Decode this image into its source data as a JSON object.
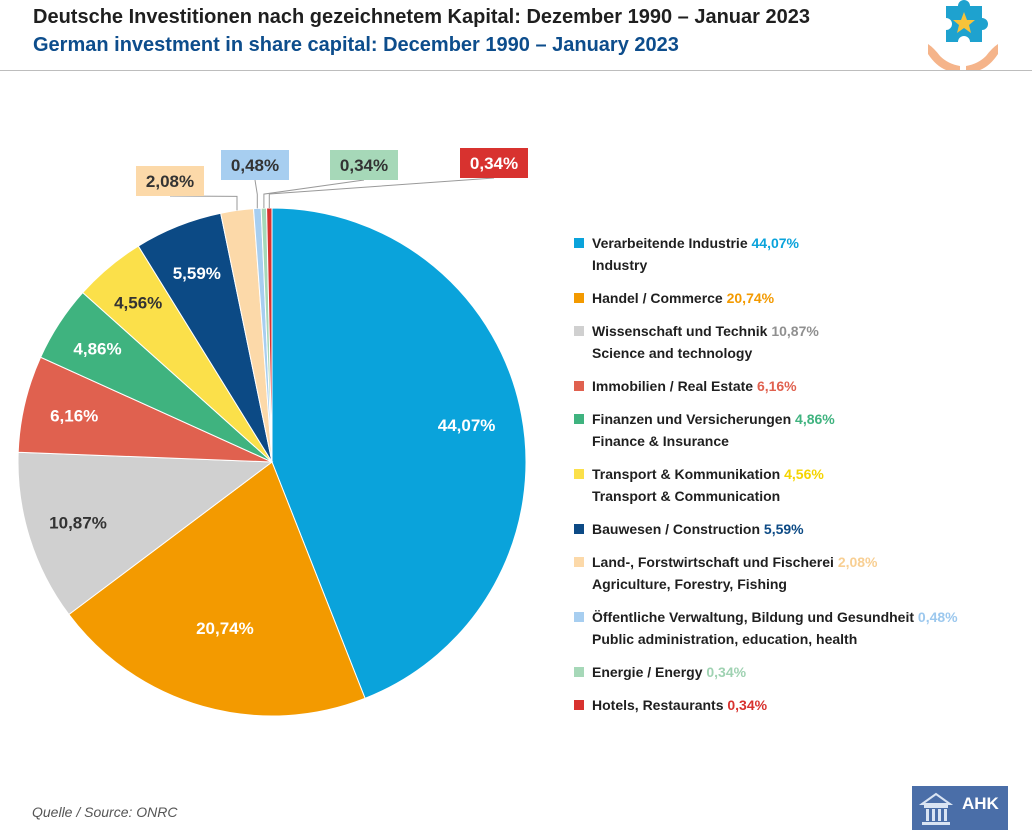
{
  "header": {
    "title_de": "Deutsche Investitionen nach gezeichnetem Kapital: Dezember 1990 – Januar 2023",
    "title_en": "German investment in share capital: December 1990 – January 2023"
  },
  "footer": {
    "source": "Quelle / Source: ONRC",
    "logo_text": "AHK"
  },
  "icons": {
    "top_right": "puzzle-hands-star-icon",
    "bottom_right": "ahk-building-logo-icon"
  },
  "chart_data": {
    "type": "pie",
    "start_angle_deg": 0,
    "direction": "clockwise",
    "slices": [
      {
        "label_de": "Verarbeitende Industrie",
        "label_en": "Industry",
        "value": 44.07,
        "value_label": "44,07%",
        "color": "#0aa3db",
        "label_color": "#ffffff",
        "pct_color": "#0aa3db"
      },
      {
        "label_de": "Handel / Commerce",
        "label_en": "",
        "value": 20.74,
        "value_label": "20,74%",
        "color": "#f39a00",
        "label_color": "#ffffff",
        "pct_color": "#f39a00"
      },
      {
        "label_de": "Wissenschaft und Technik",
        "label_en": "Science and technology",
        "value": 10.87,
        "value_label": "10,87%",
        "color": "#d0d0d0",
        "label_color": "#333333",
        "pct_color": "#909090"
      },
      {
        "label_de": "Immobilien / Real Estate",
        "label_en": "",
        "value": 6.16,
        "value_label": "6,16%",
        "color": "#e0614f",
        "label_color": "#ffffff",
        "pct_color": "#e0614f"
      },
      {
        "label_de": "Finanzen und Versicherungen",
        "label_en": "Finance & Insurance",
        "value": 4.86,
        "value_label": "4,86%",
        "color": "#3fb37f",
        "label_color": "#ffffff",
        "pct_color": "#3fb37f"
      },
      {
        "label_de": "Transport & Kommunikation",
        "label_en": "Transport & Communication",
        "value": 4.56,
        "value_label": "4,56%",
        "color": "#fbe04a",
        "label_color": "#333333",
        "pct_color": "#f5d400"
      },
      {
        "label_de": "Bauwesen / Construction",
        "label_en": "",
        "value": 5.59,
        "value_label": "5,59%",
        "color": "#0c4a85",
        "label_color": "#ffffff",
        "pct_color": "#0c4a85"
      },
      {
        "label_de": "Land-, Forstwirtschaft und Fischerei",
        "label_en": "Agriculture, Forestry, Fishing",
        "value": 2.08,
        "value_label": "2,08%",
        "color": "#fcd9a9",
        "label_color": "#333333",
        "pct_color": "#f8cf93",
        "callout": true
      },
      {
        "label_de": "Öffentliche Verwaltung, Bildung und Gesundheit",
        "label_en": "Public administration, education, health",
        "value": 0.48,
        "value_label": "0,48%",
        "color": "#a7cef0",
        "label_color": "#333333",
        "pct_color": "#9cc8ee",
        "callout": true
      },
      {
        "label_de": "Energie / Energy",
        "label_en": "",
        "value": 0.34,
        "value_label": "0,34%",
        "color": "#a6d8b8",
        "label_color": "#333333",
        "pct_color": "#9fd2b2",
        "callout": true
      },
      {
        "label_de": "Hotels, Restaurants",
        "label_en": "",
        "value": 0.34,
        "value_label": "0,34%",
        "color": "#d8322f",
        "label_color": "#ffffff",
        "pct_color": "#d8322f",
        "callout": true
      }
    ]
  }
}
